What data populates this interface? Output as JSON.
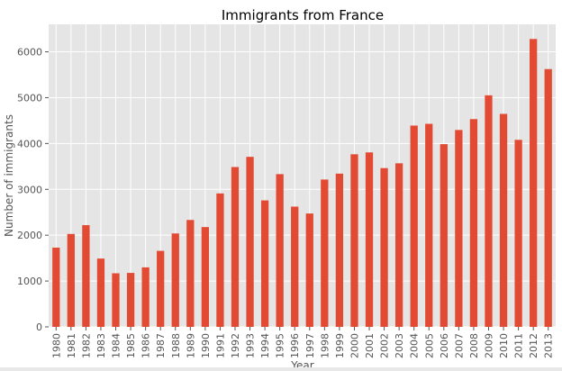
{
  "chart_data": {
    "type": "bar",
    "title": "Immigrants from France",
    "xlabel": "Year",
    "ylabel": "Number of immigrants",
    "ylim": [
      0,
      6600
    ],
    "yticks": [
      0,
      1000,
      2000,
      3000,
      4000,
      5000,
      6000
    ],
    "grid": true,
    "legend": "none",
    "colors": {
      "bar": "#E24A33",
      "plot_background": "#E5E5E5",
      "grid": "#FFFFFF",
      "text": "#555555",
      "title": "#000000"
    },
    "categories": [
      "1980",
      "1981",
      "1982",
      "1983",
      "1984",
      "1985",
      "1986",
      "1987",
      "1988",
      "1989",
      "1990",
      "1991",
      "1992",
      "1993",
      "1994",
      "1995",
      "1996",
      "1997",
      "1998",
      "1999",
      "2000",
      "2001",
      "2002",
      "2003",
      "2004",
      "2005",
      "2006",
      "2007",
      "2008",
      "2009",
      "2010",
      "2011",
      "2012",
      "2013"
    ],
    "values": [
      1729,
      2027,
      2219,
      1490,
      1169,
      1177,
      1298,
      1658,
      2038,
      2332,
      2177,
      2911,
      3487,
      3709,
      2759,
      3332,
      2623,
      2473,
      3214,
      3343,
      3765,
      3806,
      3463,
      3568,
      4391,
      4429,
      3986,
      4295,
      4532,
      5051,
      4646,
      4080,
      6280,
      5623
    ]
  }
}
